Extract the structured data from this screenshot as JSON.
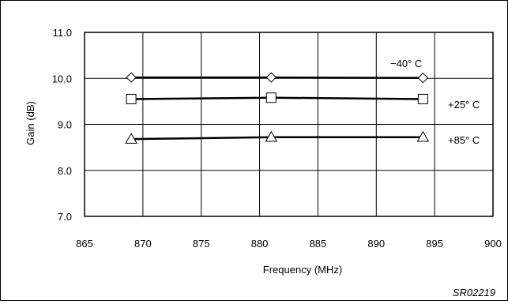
{
  "chart_data": {
    "type": "line",
    "title": "",
    "xlabel": "Frequency (MHz)",
    "ylabel": "Gain (dB)",
    "xlim": [
      865,
      900
    ],
    "ylim": [
      7.0,
      11.0
    ],
    "x_ticks": [
      "865",
      "870",
      "875",
      "880",
      "885",
      "890",
      "895",
      "900"
    ],
    "y_ticks": [
      "7.0",
      "8.0",
      "9.0",
      "10.0",
      "11.0"
    ],
    "grid": true,
    "legend": "none",
    "series": [
      {
        "name": "−40° C",
        "marker": "diamond",
        "x": [
          869,
          881,
          894
        ],
        "y": [
          10.02,
          10.02,
          10.01
        ]
      },
      {
        "name": "+25° C",
        "marker": "square",
        "x": [
          869,
          881,
          894
        ],
        "y": [
          9.55,
          9.58,
          9.55
        ]
      },
      {
        "name": "+85° C",
        "marker": "triangle",
        "x": [
          869,
          881,
          894
        ],
        "y": [
          8.68,
          8.72,
          8.72
        ]
      }
    ],
    "figure_id": "SR02219"
  }
}
